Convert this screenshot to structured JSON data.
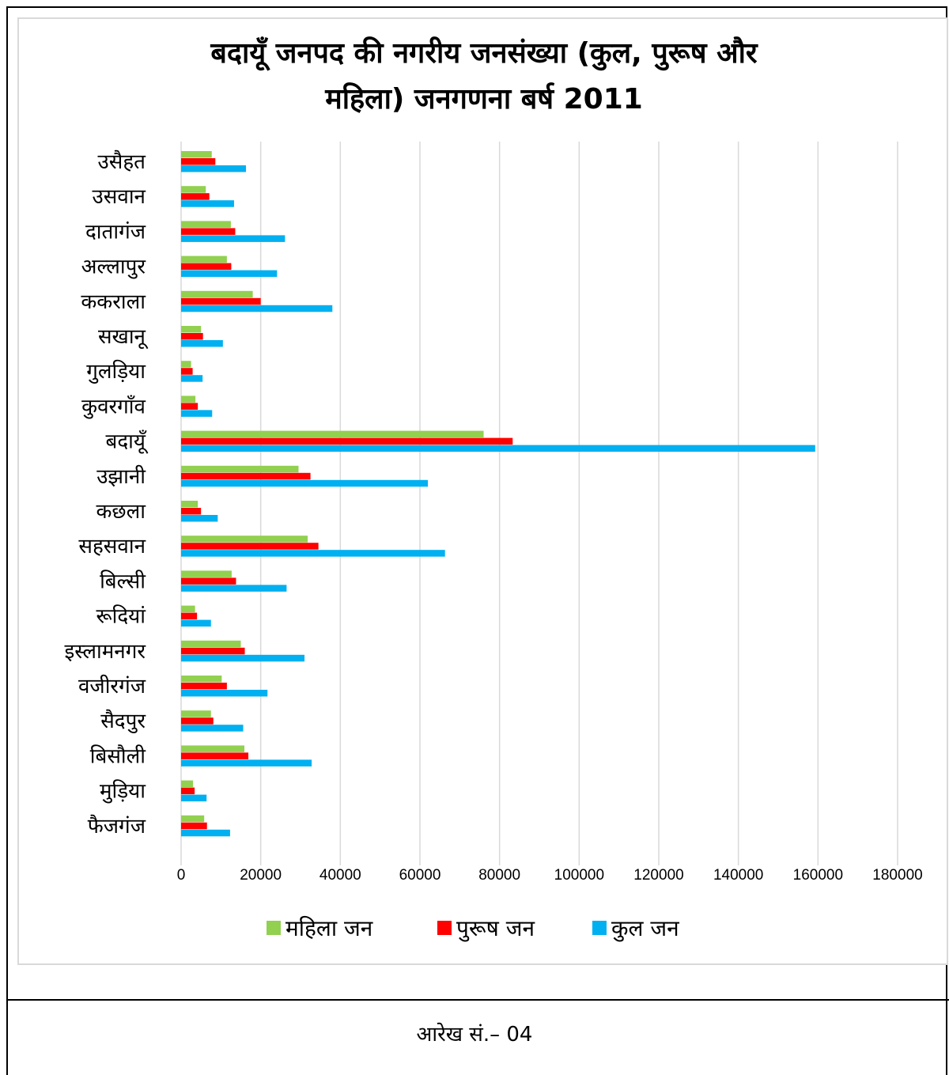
{
  "chart_data": {
    "type": "bar",
    "orientation": "horizontal",
    "title_lines": [
      "बदायूँ जनपद की नगरीय जनसंख्या (कुल, पुरूष और",
      "महिला) जनगणना बर्ष 2011"
    ],
    "categories": [
      "उसैहत",
      "उसवान",
      "दातागंज",
      "अल्लापुर",
      "ककराला",
      "सखानू",
      "गुलड़िया",
      "कुवरगाँव",
      "बदायूँ",
      "उझानी",
      "कछला",
      "सहसवान",
      "बिल्सी",
      "रूदियां",
      "इस्लामनगर",
      "वजीरगंज",
      "सैदपुर",
      "बिसौली",
      "मुड़िया",
      "फैजगंज"
    ],
    "series": [
      {
        "name": "महिला जन",
        "color": "#92d050",
        "values": [
          7700,
          6200,
          12500,
          11500,
          18000,
          5000,
          2500,
          3600,
          76000,
          29500,
          4200,
          31800,
          12700,
          3500,
          15000,
          10200,
          7500,
          15900,
          3000,
          5800
        ]
      },
      {
        "name": "पुरूष जन",
        "color": "#ff0000",
        "values": [
          8600,
          7100,
          13600,
          12600,
          20000,
          5500,
          2900,
          4200,
          83300,
          32500,
          5000,
          34500,
          13800,
          4000,
          16000,
          11500,
          8100,
          16900,
          3400,
          6500
        ]
      },
      {
        "name": "कुल जन",
        "color": "#00b0f0",
        "values": [
          16300,
          13300,
          26100,
          24100,
          38000,
          10500,
          5400,
          7800,
          159300,
          62000,
          9200,
          66300,
          26500,
          7500,
          31000,
          21700,
          15600,
          32800,
          6400,
          12300
        ]
      }
    ],
    "xlim": [
      0,
      180000
    ],
    "xticks": [
      "0",
      "20000",
      "40000",
      "60000",
      "80000",
      "100000",
      "120000",
      "140000",
      "160000",
      "180000"
    ],
    "grid": true,
    "legend_position": "bottom"
  },
  "caption": "आरेख सं.– 04"
}
